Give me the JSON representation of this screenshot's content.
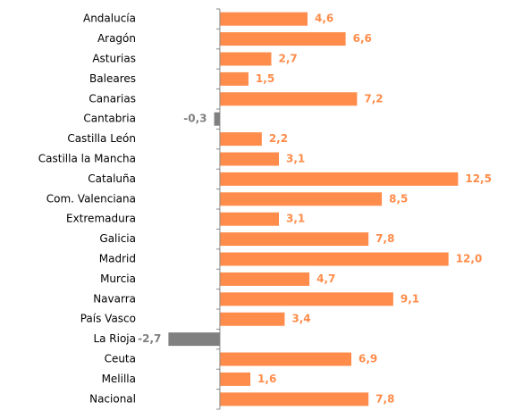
{
  "chart_data": {
    "type": "barh",
    "categories": [
      "Andalucía",
      "Aragón",
      "Asturias",
      "Baleares",
      "Canarias",
      "Cantabria",
      "Castilla León",
      "Castilla la Mancha",
      "Cataluña",
      "Com. Valenciana",
      "Extremadura",
      "Galicia",
      "Madrid",
      "Murcia",
      "Navarra",
      "País Vasco",
      "La Rioja",
      "Ceuta",
      "Melilla",
      "Nacional"
    ],
    "values": [
      4.6,
      6.6,
      2.7,
      1.5,
      7.2,
      -0.3,
      2.2,
      3.1,
      12.5,
      8.5,
      3.1,
      7.8,
      12.0,
      4.7,
      9.1,
      3.4,
      -2.7,
      6.9,
      1.6,
      7.8
    ],
    "value_labels": [
      "4,6",
      "6,6",
      "2,7",
      "1,5",
      "7,2",
      "-0,3",
      "2,2",
      "3,1",
      "12,5",
      "8,5",
      "3,1",
      "7,8",
      "12,0",
      "4,7",
      "9,1",
      "3,4",
      "-2,7",
      "6,9",
      "1,6",
      "7,8"
    ],
    "color": "#ff8c4a",
    "negative_color": "#808080",
    "xlim": [
      -3,
      13
    ]
  }
}
